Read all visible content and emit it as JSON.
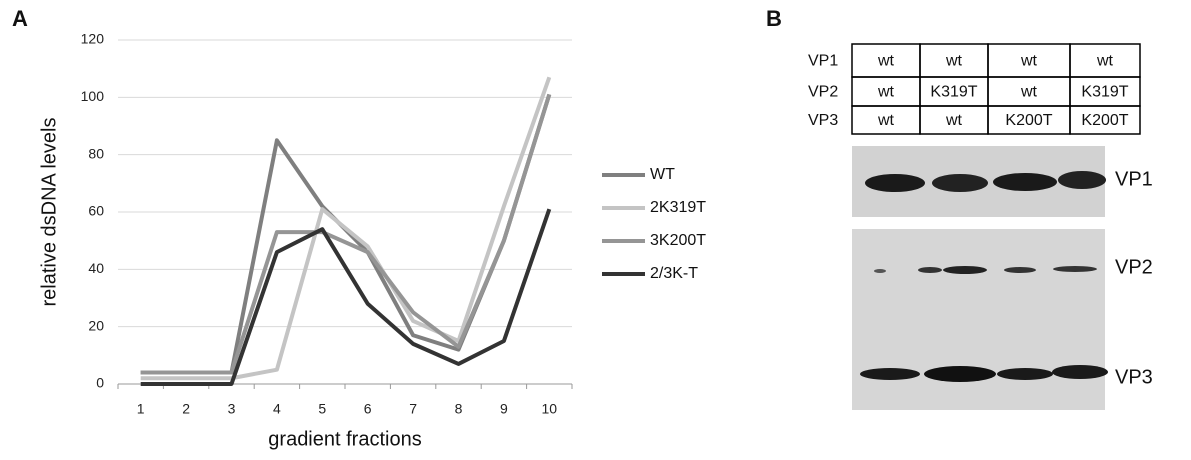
{
  "panel_labels": [
    "A",
    "B"
  ],
  "chart_data": {
    "type": "line",
    "x_label": "gradient fractions",
    "y_label": "relative dsDNA  levels",
    "categories": [
      "1",
      "2",
      "3",
      "4",
      "5",
      "6",
      "7",
      "8",
      "9",
      "10"
    ],
    "series": [
      {
        "name": "WT",
        "color": "#7f7f7f",
        "values": [
          4,
          4,
          4,
          85,
          62,
          46,
          17,
          12,
          50,
          101
        ]
      },
      {
        "name": "2K319T",
        "color": "#c4c4c4",
        "values": [
          2,
          2,
          2,
          5,
          61,
          48,
          22,
          15,
          62,
          107
        ]
      },
      {
        "name": "3K200T",
        "color": "#959595",
        "values": [
          4,
          4,
          4,
          53,
          53,
          46,
          25,
          13,
          50,
          101
        ]
      },
      {
        "name": "2/3K-T",
        "color": "#333333",
        "values": [
          0,
          0,
          0,
          46,
          54,
          28,
          14,
          7,
          15,
          61
        ]
      }
    ],
    "ylim": [
      0,
      120
    ],
    "yticks": [
      0,
      20,
      40,
      60,
      80,
      100,
      120
    ],
    "grid": true,
    "legend": "right"
  },
  "panel_b": {
    "table": {
      "rows": [
        [
          "VP1",
          "wt",
          "wt",
          "wt",
          "wt"
        ],
        [
          "VP2",
          "wt",
          "K319T",
          "wt",
          "K319T"
        ],
        [
          "VP3",
          "wt",
          "wt",
          "K200T",
          "K200T"
        ]
      ]
    },
    "blot_labels": [
      "VP1",
      "VP2",
      "VP3"
    ]
  }
}
